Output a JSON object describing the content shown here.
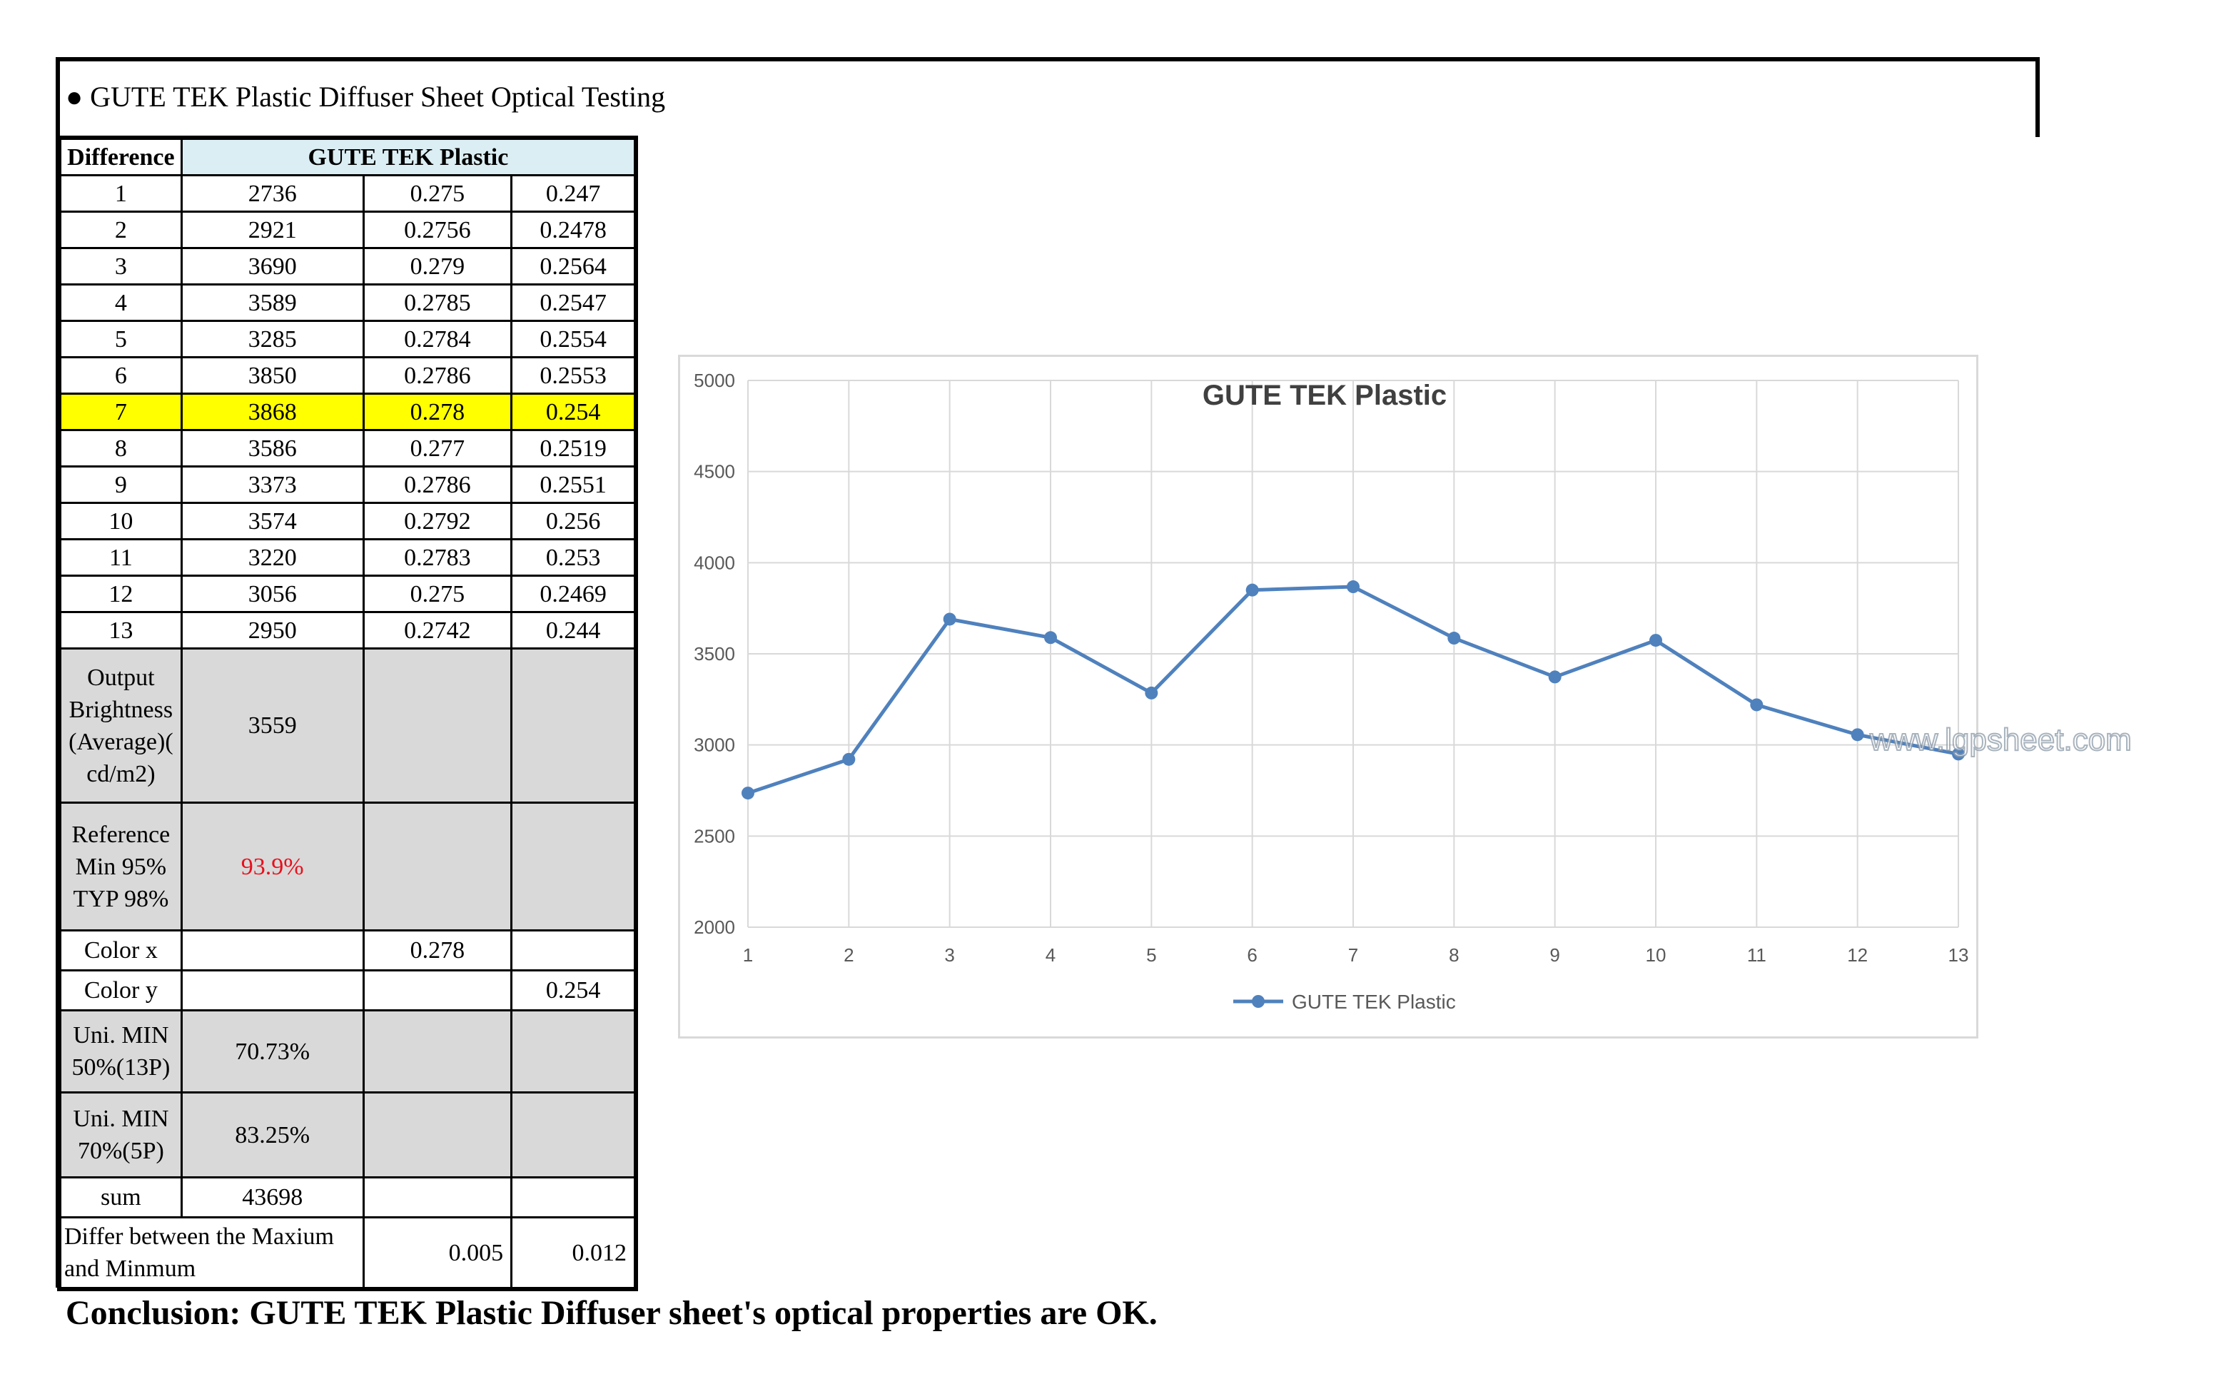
{
  "heading": "● GUTE TEK Plastic Diffuser Sheet Optical Testing",
  "table": {
    "header_left": "Difference",
    "header_right": "GUTE TEK Plastic",
    "rows": [
      [
        "1",
        "2736",
        "0.275",
        "0.247"
      ],
      [
        "2",
        "2921",
        "0.2756",
        "0.2478"
      ],
      [
        "3",
        "3690",
        "0.279",
        "0.2564"
      ],
      [
        "4",
        "3589",
        "0.2785",
        "0.2547"
      ],
      [
        "5",
        "3285",
        "0.2784",
        "0.2554"
      ],
      [
        "6",
        "3850",
        "0.2786",
        "0.2553"
      ],
      [
        "7",
        "3868",
        "0.278",
        "0.254"
      ],
      [
        "8",
        "3586",
        "0.277",
        "0.2519"
      ],
      [
        "9",
        "3373",
        "0.2786",
        "0.2551"
      ],
      [
        "10",
        "3574",
        "0.2792",
        "0.256"
      ],
      [
        "11",
        "3220",
        "0.2783",
        "0.253"
      ],
      [
        "12",
        "3056",
        "0.275",
        "0.2469"
      ],
      [
        "13",
        "2950",
        "0.2742",
        "0.244"
      ]
    ],
    "output_label": "Output Brightness (Average)( cd/m2)",
    "output_value": "3559",
    "reference_label": "Reference Min 95% TYP 98%",
    "reference_value": "93.9%",
    "color_x_label": "Color x",
    "color_x_value": "0.278",
    "color_y_label": "Color y",
    "color_y_value": "0.254",
    "uni13_label": "Uni. MIN 50%(13P)",
    "uni13_value": "70.73%",
    "uni5_label": "Uni. MIN 70%(5P)",
    "uni5_value": "83.25%",
    "sum_label": "sum",
    "sum_value": "43698",
    "differ_label": "Differ between the Maxium and Minmum",
    "differ_x": "0.005",
    "differ_y": "0.012"
  },
  "conclusion": "Conclusion: GUTE TEK Plastic Diffuser sheet's optical properties are OK.",
  "watermark": "www.lgpsheet.com",
  "colors": {
    "highlight": "#ffff00",
    "header_blue": "#dbeef4",
    "gray": "#d9d9d9",
    "series": "#4f81bd",
    "red": "#e8101c"
  },
  "chart_data": {
    "type": "line",
    "title": "GUTE TEK Plastic",
    "categories": [
      "1",
      "2",
      "3",
      "4",
      "5",
      "6",
      "7",
      "8",
      "9",
      "10",
      "11",
      "12",
      "13"
    ],
    "series": [
      {
        "name": "GUTE TEK Plastic",
        "values": [
          2736,
          2921,
          3690,
          3589,
          3285,
          3850,
          3868,
          3586,
          3373,
          3574,
          3220,
          3056,
          2950
        ]
      }
    ],
    "ylim": [
      2000,
      5000
    ],
    "yticks": [
      2000,
      2500,
      3000,
      3500,
      4000,
      4500,
      5000
    ],
    "grid": true,
    "legend": "bottom",
    "xlabel": "",
    "ylabel": ""
  }
}
